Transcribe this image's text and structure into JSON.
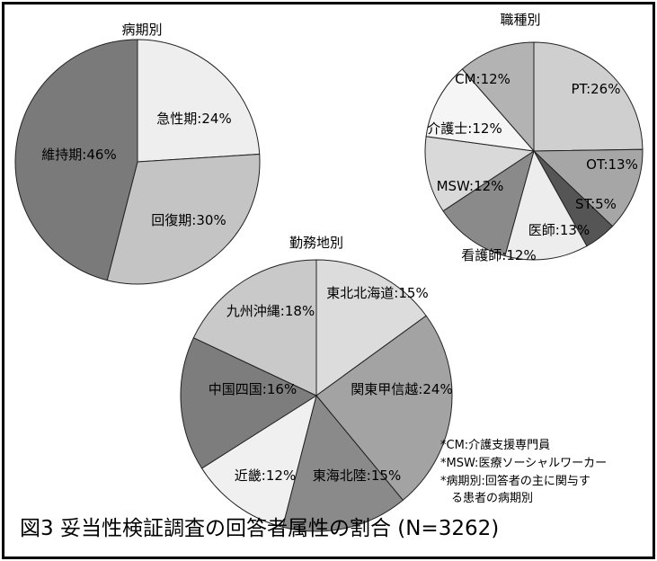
{
  "caption": "図3 妥当性検証調査の回答者属性の割合 (N=3262)",
  "notes": [
    "*CM:介護支援専門員",
    "*MSW:医療ソーシャルワーカー",
    "*病期別:回答者の主に関与す",
    "る患者の病期別"
  ],
  "chart_data": [
    {
      "type": "pie",
      "title": "病期別",
      "slices": [
        {
          "label": "急性期:24%",
          "value": 24,
          "color": "#eeeeee"
        },
        {
          "label": "回復期:30%",
          "value": 30,
          "color": "#c4c4c4"
        },
        {
          "label": "維持期:46%",
          "value": 46,
          "color": "#7a7a7a"
        }
      ]
    },
    {
      "type": "pie",
      "title": "職種別",
      "slices": [
        {
          "label": "PT:26%",
          "value": 26,
          "color": "#cfcfcf"
        },
        {
          "label": "OT:13%",
          "value": 13,
          "color": "#a6a6a6"
        },
        {
          "label": "ST:5%",
          "value": 5,
          "color": "#555555"
        },
        {
          "label": "医師:13%",
          "value": 13,
          "color": "#ededed"
        },
        {
          "label": "看護師:12%",
          "value": 12,
          "color": "#8a8a8a"
        },
        {
          "label": "MSW:12%",
          "value": 12,
          "color": "#d9d9d9"
        },
        {
          "label": "介護士:12%",
          "value": 12,
          "color": "#f5f5f5"
        },
        {
          "label": "CM:12%",
          "value": 12,
          "color": "#b3b3b3"
        }
      ]
    },
    {
      "type": "pie",
      "title": "勤務地別",
      "slices": [
        {
          "label": "東北北海道:15%",
          "value": 15,
          "color": "#dcdcdc"
        },
        {
          "label": "関東甲信越:24%",
          "value": 24,
          "color": "#a3a3a3"
        },
        {
          "label": "東海北陸:15%",
          "value": 15,
          "color": "#8a8a8a"
        },
        {
          "label": "近畿:12%",
          "value": 12,
          "color": "#f0f0f0"
        },
        {
          "label": "中国四国:16%",
          "value": 16,
          "color": "#7d7d7d"
        },
        {
          "label": "九州沖縄:18%",
          "value": 18,
          "color": "#c9c9c9"
        }
      ]
    }
  ]
}
